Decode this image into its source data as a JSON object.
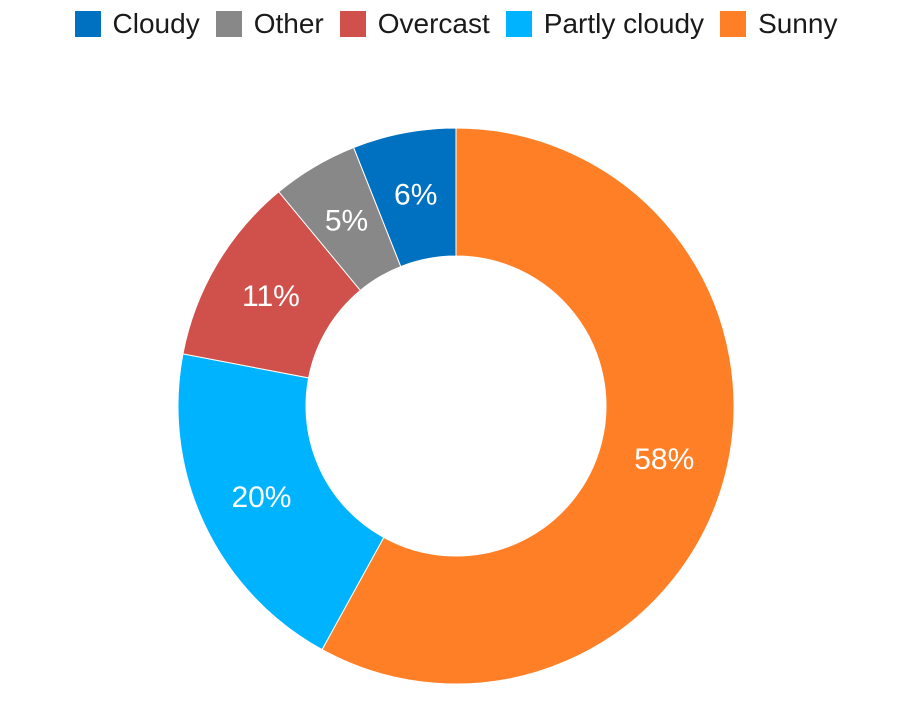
{
  "chart_data": {
    "type": "pie",
    "donut": true,
    "legend_position": "top-center",
    "title": "",
    "slices": [
      {
        "name": "Sunny",
        "value": 58,
        "label": "58%",
        "color": "#FF7F27"
      },
      {
        "name": "Partly cloudy",
        "value": 20,
        "label": "20%",
        "color": "#00B3FF"
      },
      {
        "name": "Overcast",
        "value": 11,
        "label": "11%",
        "color": "#D0514B"
      },
      {
        "name": "Other",
        "value": 5,
        "label": "5%",
        "color": "#888888"
      },
      {
        "name": "Cloudy",
        "value": 6,
        "label": "6%",
        "color": "#0070C0"
      }
    ],
    "legend": [
      {
        "name": "Cloudy",
        "color": "#0070C0"
      },
      {
        "name": "Other",
        "color": "#888888"
      },
      {
        "name": "Overcast",
        "color": "#D0514B"
      },
      {
        "name": "Partly cloudy",
        "color": "#00B3FF"
      },
      {
        "name": "Sunny",
        "color": "#FF7F27"
      }
    ]
  }
}
